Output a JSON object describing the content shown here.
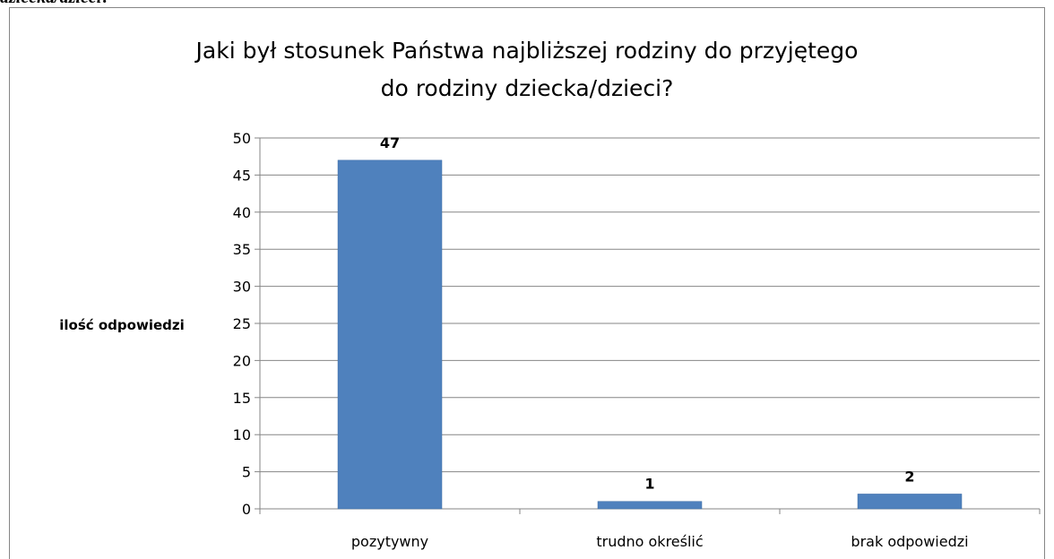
{
  "document": {
    "caption_fragment": "dziecka/dzieci?"
  },
  "chart_data": {
    "type": "bar",
    "title_lines": [
      "Jaki był stosunek Państwa najbliższej rodziny do przyjętego",
      "do rodziny dziecka/dzieci?"
    ],
    "xlabel": "",
    "ylabel": "ilość odpowiedzi",
    "categories": [
      "pozytywny",
      "trudno określić",
      "brak odpowiedzi"
    ],
    "values": [
      47,
      1,
      2
    ],
    "data_labels": [
      "47",
      "1",
      "2"
    ],
    "ylim": [
      0,
      50
    ],
    "yticks": [
      0,
      5,
      10,
      15,
      20,
      25,
      30,
      35,
      40,
      45,
      50
    ],
    "grid": true,
    "legend": "none",
    "colors": {
      "bar": "#4F81BD",
      "bar_edge": "#3B6BA5",
      "grid": "#868686",
      "axis": "#868686"
    }
  }
}
